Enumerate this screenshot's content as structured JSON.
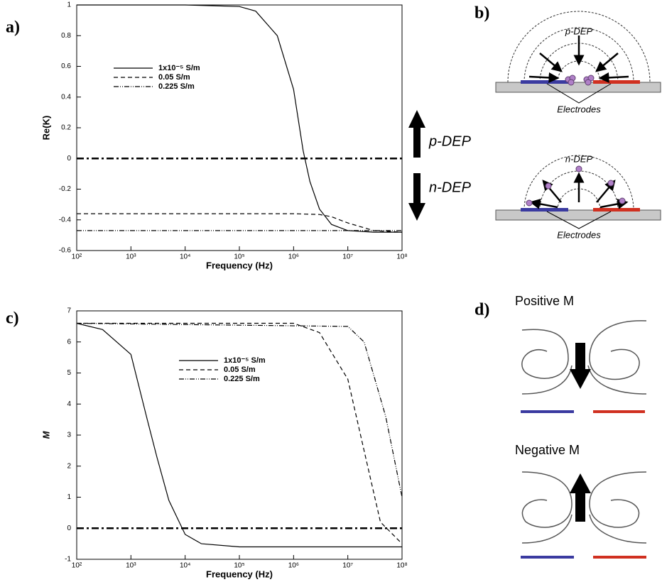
{
  "chart_data": [
    {
      "type": "line",
      "xlabel": "Frequency (Hz)",
      "ylabel": "Re(K)",
      "xscale": "log",
      "xlim": [
        100,
        100000000
      ],
      "xticks": [
        {
          "value": 100,
          "label": "10²"
        },
        {
          "value": 1000,
          "label": "10³"
        },
        {
          "value": 10000,
          "label": "10⁴"
        },
        {
          "value": 100000,
          "label": "10⁵"
        },
        {
          "value": 1000000,
          "label": "10⁶"
        },
        {
          "value": 10000000,
          "label": "10⁷"
        },
        {
          "value": 100000000,
          "label": "10⁸"
        }
      ],
      "ylim": [
        -0.6,
        1
      ],
      "yticks": [
        -0.6,
        -0.4,
        -0.2,
        0,
        0.2,
        0.4,
        0.6,
        0.8,
        1
      ],
      "reference_line": 0,
      "series": [
        {
          "name": "1x10⁻⁵ S/m",
          "color": "#000000",
          "line_style": "solid",
          "x": [
            100,
            1000,
            10000,
            100000,
            200000,
            500000,
            1000000,
            1500000,
            2000000,
            3000000,
            5000000,
            10000000,
            30000000,
            100000000
          ],
          "values": [
            1,
            1,
            1,
            0.99,
            0.96,
            0.8,
            0.45,
            0.05,
            -0.15,
            -0.33,
            -0.43,
            -0.47,
            -0.48,
            -0.48
          ]
        },
        {
          "name": "0.05 S/m",
          "color": "#000000",
          "line_style": "dashed",
          "x": [
            100,
            1000000,
            3000000,
            5000000,
            10000000,
            30000000,
            100000000
          ],
          "values": [
            -0.36,
            -0.36,
            -0.365,
            -0.38,
            -0.42,
            -0.47,
            -0.48
          ]
        },
        {
          "name": "0.225 S/m",
          "color": "#000000",
          "line_style": "dashdotdot",
          "x": [
            100,
            100000000
          ],
          "values": [
            -0.47,
            -0.47
          ]
        }
      ]
    },
    {
      "type": "line",
      "xlabel": "Frequency (Hz)",
      "ylabel": "M",
      "xscale": "log",
      "xlim": [
        100,
        100000000
      ],
      "xticks": [
        {
          "value": 100,
          "label": "10²"
        },
        {
          "value": 1000,
          "label": "10³"
        },
        {
          "value": 10000,
          "label": "10⁴"
        },
        {
          "value": 100000,
          "label": "10⁵"
        },
        {
          "value": 1000000,
          "label": "10⁶"
        },
        {
          "value": 10000000,
          "label": "10⁷"
        },
        {
          "value": 100000000,
          "label": "10⁸"
        }
      ],
      "ylim": [
        -1,
        7
      ],
      "yticks": [
        -1,
        0,
        1,
        2,
        3,
        4,
        5,
        6,
        7
      ],
      "reference_line": 0,
      "series": [
        {
          "name": "1x10⁻⁵ S/m",
          "color": "#000000",
          "line_style": "solid",
          "x": [
            100,
            300,
            1000,
            2000,
            3000,
            5000,
            10000,
            20000,
            100000,
            100000000
          ],
          "values": [
            6.6,
            6.4,
            5.6,
            3.5,
            2.3,
            0.9,
            -0.2,
            -0.5,
            -0.6,
            -0.6
          ]
        },
        {
          "name": "0.05 S/m",
          "color": "#000000",
          "line_style": "dashed",
          "x": [
            100,
            1000000,
            3000000,
            10000000,
            20000000,
            40000000,
            100000000
          ],
          "values": [
            6.6,
            6.6,
            6.3,
            4.8,
            2.5,
            0.2,
            -0.5
          ]
        },
        {
          "name": "0.225 S/m",
          "color": "#000000",
          "line_style": "dashdotdot",
          "x": [
            100,
            10000000,
            20000000,
            50000000,
            100000000
          ],
          "values": [
            6.6,
            6.5,
            6.0,
            3.6,
            1.0
          ]
        }
      ]
    }
  ],
  "labels": {
    "a": "a)",
    "b": "b)",
    "c": "c)",
    "d": "d)",
    "p_dep": "p-DEP",
    "n_dep": "n-DEP"
  },
  "panel_b": {
    "top_title": "p-DEP",
    "top_caption": "Electrodes",
    "bottom_title": "n-DEP",
    "bottom_caption": "Electrodes"
  },
  "panel_d": {
    "top_title": "Positive M",
    "bottom_title": "Negative M"
  }
}
